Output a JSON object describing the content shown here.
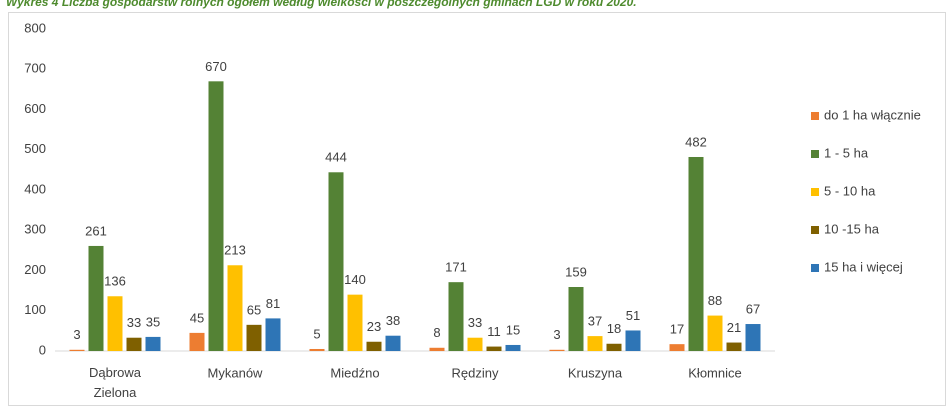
{
  "chart_data": {
    "type": "bar",
    "title": "Wykres 4 Liczba gospodarstw rolnych ogółem według wielkości w poszczególnych gminach LGD w roku 2020.",
    "categories": [
      "Dąbrowa Zielona",
      "Mykanów",
      "Miedźno",
      "Rędziny",
      "Kruszyna",
      "Kłomnice"
    ],
    "series": [
      {
        "name": "do 1 ha włącznie",
        "color": "#ed7d31",
        "values": [
          3,
          45,
          5,
          8,
          3,
          17
        ]
      },
      {
        "name": "1 - 5 ha",
        "color": "#548235",
        "values": [
          261,
          670,
          444,
          171,
          159,
          482
        ]
      },
      {
        "name": "5 - 10 ha",
        "color": "#ffc000",
        "values": [
          136,
          213,
          140,
          33,
          37,
          88
        ]
      },
      {
        "name": "10 -15 ha",
        "color": "#7f6000",
        "values": [
          33,
          65,
          23,
          11,
          18,
          21
        ]
      },
      {
        "name": "15 ha i więcej",
        "color": "#2e75b6",
        "values": [
          35,
          81,
          38,
          15,
          51,
          67
        ]
      }
    ],
    "ylim": [
      0,
      800
    ],
    "yticks": [
      0,
      100,
      200,
      300,
      400,
      500,
      600,
      700,
      800
    ],
    "grid": false,
    "legend": "right"
  }
}
